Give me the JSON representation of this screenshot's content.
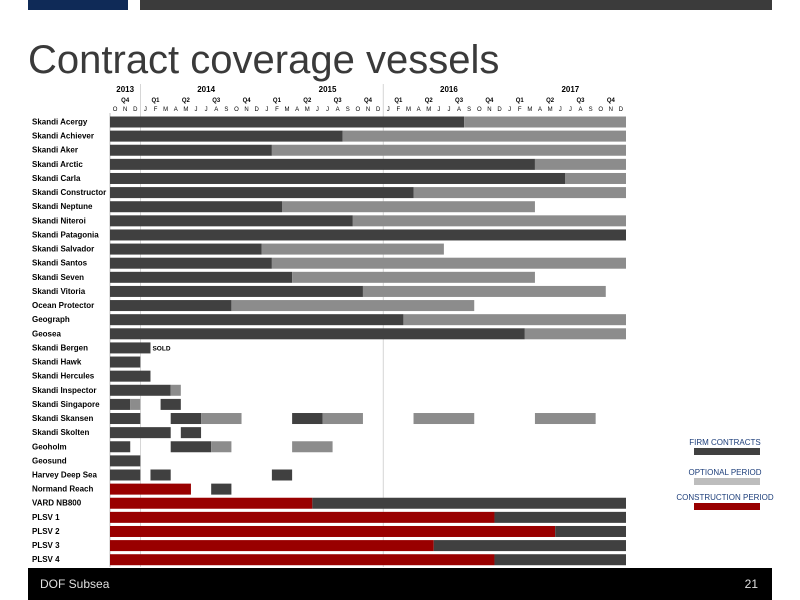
{
  "header": {
    "title": "Contract coverage vessels"
  },
  "footer": {
    "company": "DOF Subsea",
    "page_number": "21"
  },
  "legend": {
    "items": [
      {
        "label": "FIRM CONTRACTS",
        "color": "#404040"
      },
      {
        "label": "OPTIONAL PERIOD",
        "color": "#bdbdbd"
      },
      {
        "label": "CONSTRUCTION PERIOD",
        "color": "#990000"
      }
    ]
  },
  "chart_data": {
    "type": "gantt",
    "time_unit": "month",
    "start": "2013-10",
    "end": "2017-12",
    "month_count": 51,
    "current_month_index": 27,
    "years": [
      {
        "label": "2013",
        "month_index": 1
      },
      {
        "label": "2014",
        "month_index": 9
      },
      {
        "label": "2015",
        "month_index": 21
      },
      {
        "label": "2016",
        "month_index": 33
      },
      {
        "label": "2017",
        "month_index": 45
      }
    ],
    "quarters": [
      {
        "label": "Q4",
        "month_index": 1
      },
      {
        "label": "Q1",
        "month_index": 4
      },
      {
        "label": "Q2",
        "month_index": 7
      },
      {
        "label": "Q3",
        "month_index": 10
      },
      {
        "label": "Q4",
        "month_index": 13
      },
      {
        "label": "Q1",
        "month_index": 16
      },
      {
        "label": "Q2",
        "month_index": 19
      },
      {
        "label": "Q3",
        "month_index": 22
      },
      {
        "label": "Q4",
        "month_index": 25
      },
      {
        "label": "Q1",
        "month_index": 28
      },
      {
        "label": "Q2",
        "month_index": 31
      },
      {
        "label": "Q3",
        "month_index": 34
      },
      {
        "label": "Q4",
        "month_index": 37
      },
      {
        "label": "Q1",
        "month_index": 40
      },
      {
        "label": "Q2",
        "month_index": 43
      },
      {
        "label": "Q3",
        "month_index": 46
      },
      {
        "label": "Q4",
        "month_index": 49
      }
    ],
    "month_letters": [
      "O",
      "N",
      "D",
      "J",
      "F",
      "M",
      "A",
      "M",
      "J",
      "J",
      "A",
      "S",
      "O",
      "N",
      "D",
      "J",
      "F",
      "M",
      "A",
      "M",
      "J",
      "J",
      "A",
      "S",
      "O",
      "N",
      "D",
      "J",
      "F",
      "M",
      "A",
      "M",
      "J",
      "J",
      "A",
      "S",
      "O",
      "N",
      "D",
      "J",
      "F",
      "M",
      "A",
      "M",
      "J",
      "J",
      "A",
      "S",
      "O",
      "N",
      "D"
    ],
    "vessels": [
      {
        "name": "Skandi Acergy",
        "segments": [
          {
            "start": 0,
            "end": 35,
            "kind": "firm"
          },
          {
            "start": 35,
            "end": 51,
            "kind": "option"
          }
        ]
      },
      {
        "name": "Skandi Achiever",
        "segments": [
          {
            "start": 0,
            "end": 23,
            "kind": "firm"
          },
          {
            "start": 23,
            "end": 51,
            "kind": "option"
          }
        ]
      },
      {
        "name": "Skandi Aker",
        "segments": [
          {
            "start": 0,
            "end": 16,
            "kind": "firm"
          },
          {
            "start": 16,
            "end": 51,
            "kind": "option"
          }
        ]
      },
      {
        "name": "Skandi Arctic",
        "segments": [
          {
            "start": 0,
            "end": 42,
            "kind": "firm"
          },
          {
            "start": 42,
            "end": 51,
            "kind": "option"
          }
        ]
      },
      {
        "name": "Skandi Carla",
        "segments": [
          {
            "start": 0,
            "end": 45,
            "kind": "firm"
          },
          {
            "start": 45,
            "end": 51,
            "kind": "option"
          }
        ]
      },
      {
        "name": "Skandi Constructor",
        "segments": [
          {
            "start": 0,
            "end": 30,
            "kind": "firm"
          },
          {
            "start": 30,
            "end": 51,
            "kind": "option"
          }
        ]
      },
      {
        "name": "Skandi Neptune",
        "segments": [
          {
            "start": 0,
            "end": 17,
            "kind": "firm"
          },
          {
            "start": 17,
            "end": 42,
            "kind": "option"
          }
        ]
      },
      {
        "name": "Skandi Niteroi",
        "segments": [
          {
            "start": 0,
            "end": 24,
            "kind": "firm"
          },
          {
            "start": 24,
            "end": 51,
            "kind": "option"
          }
        ]
      },
      {
        "name": "Skandi Patagonia",
        "segments": [
          {
            "start": 0,
            "end": 51,
            "kind": "firm"
          }
        ]
      },
      {
        "name": "Skandi Salvador",
        "segments": [
          {
            "start": 0,
            "end": 15,
            "kind": "firm"
          },
          {
            "start": 15,
            "end": 33,
            "kind": "option"
          }
        ]
      },
      {
        "name": "Skandi Santos",
        "segments": [
          {
            "start": 0,
            "end": 16,
            "kind": "firm"
          },
          {
            "start": 16,
            "end": 51,
            "kind": "option"
          }
        ]
      },
      {
        "name": "Skandi Seven",
        "segments": [
          {
            "start": 0,
            "end": 18,
            "kind": "firm"
          },
          {
            "start": 18,
            "end": 42,
            "kind": "option"
          }
        ]
      },
      {
        "name": "Skandi Vitoria",
        "segments": [
          {
            "start": 0,
            "end": 25,
            "kind": "firm"
          },
          {
            "start": 25,
            "end": 49,
            "kind": "option"
          }
        ]
      },
      {
        "name": "Ocean Protector",
        "segments": [
          {
            "start": 0,
            "end": 12,
            "kind": "firm"
          },
          {
            "start": 12,
            "end": 36,
            "kind": "option"
          }
        ]
      },
      {
        "name": "Geograph",
        "segments": [
          {
            "start": 0,
            "end": 29,
            "kind": "firm"
          },
          {
            "start": 29,
            "end": 51,
            "kind": "option"
          }
        ]
      },
      {
        "name": "Geosea",
        "segments": [
          {
            "start": 0,
            "end": 41,
            "kind": "firm"
          },
          {
            "start": 41,
            "end": 51,
            "kind": "option"
          }
        ]
      },
      {
        "name": "Skandi Bergen",
        "segments": [
          {
            "start": 0,
            "end": 4,
            "kind": "firm"
          }
        ],
        "note": "SOLD"
      },
      {
        "name": "Skandi Hawk",
        "segments": [
          {
            "start": 0,
            "end": 3,
            "kind": "firm"
          }
        ]
      },
      {
        "name": "Skandi Hercules",
        "segments": [
          {
            "start": 0,
            "end": 4,
            "kind": "firm"
          }
        ]
      },
      {
        "name": "Skandi Inspector",
        "segments": [
          {
            "start": 0,
            "end": 6,
            "kind": "firm"
          },
          {
            "start": 6,
            "end": 7,
            "kind": "option"
          }
        ]
      },
      {
        "name": "Skandi Singapore",
        "segments": [
          {
            "start": 0,
            "end": 2,
            "kind": "firm"
          },
          {
            "start": 2,
            "end": 3,
            "kind": "option"
          },
          {
            "start": 5,
            "end": 7,
            "kind": "firm"
          }
        ]
      },
      {
        "name": "Skandi Skansen",
        "segments": [
          {
            "start": 0,
            "end": 3,
            "kind": "firm"
          },
          {
            "start": 6,
            "end": 9,
            "kind": "firm"
          },
          {
            "start": 9,
            "end": 13,
            "kind": "option"
          },
          {
            "start": 18,
            "end": 21,
            "kind": "firm"
          },
          {
            "start": 21,
            "end": 25,
            "kind": "option"
          },
          {
            "start": 30,
            "end": 36,
            "kind": "option"
          },
          {
            "start": 42,
            "end": 48,
            "kind": "option"
          }
        ]
      },
      {
        "name": "Skandi Skolten",
        "segments": [
          {
            "start": 0,
            "end": 6,
            "kind": "firm"
          },
          {
            "start": 7,
            "end": 9,
            "kind": "firm"
          }
        ]
      },
      {
        "name": "Geoholm",
        "segments": [
          {
            "start": 0,
            "end": 2,
            "kind": "firm"
          },
          {
            "start": 6,
            "end": 10,
            "kind": "firm"
          },
          {
            "start": 10,
            "end": 12,
            "kind": "option"
          },
          {
            "start": 18,
            "end": 22,
            "kind": "option"
          }
        ]
      },
      {
        "name": "Geosund",
        "segments": [
          {
            "start": 0,
            "end": 3,
            "kind": "firm"
          }
        ]
      },
      {
        "name": "Harvey Deep Sea",
        "segments": [
          {
            "start": 0,
            "end": 3,
            "kind": "firm"
          },
          {
            "start": 4,
            "end": 6,
            "kind": "firm"
          },
          {
            "start": 16,
            "end": 18,
            "kind": "firm"
          }
        ]
      },
      {
        "name": "Normand Reach",
        "segments": [
          {
            "start": 0,
            "end": 8,
            "kind": "construction"
          },
          {
            "start": 10,
            "end": 12,
            "kind": "firm"
          }
        ]
      },
      {
        "name": "VARD NB800",
        "segments": [
          {
            "start": 0,
            "end": 20,
            "kind": "construction"
          },
          {
            "start": 20,
            "end": 51,
            "kind": "firm"
          }
        ]
      },
      {
        "name": "PLSV 1",
        "segments": [
          {
            "start": 0,
            "end": 38,
            "kind": "construction"
          },
          {
            "start": 38,
            "end": 51,
            "kind": "firm"
          }
        ]
      },
      {
        "name": "PLSV 2",
        "segments": [
          {
            "start": 0,
            "end": 44,
            "kind": "construction"
          },
          {
            "start": 44,
            "end": 51,
            "kind": "firm"
          }
        ]
      },
      {
        "name": "PLSV 3",
        "segments": [
          {
            "start": 0,
            "end": 32,
            "kind": "construction"
          },
          {
            "start": 32,
            "end": 51,
            "kind": "firm"
          }
        ]
      },
      {
        "name": "PLSV 4",
        "segments": [
          {
            "start": 0,
            "end": 38,
            "kind": "construction"
          },
          {
            "start": 38,
            "end": 51,
            "kind": "firm"
          }
        ]
      }
    ]
  }
}
